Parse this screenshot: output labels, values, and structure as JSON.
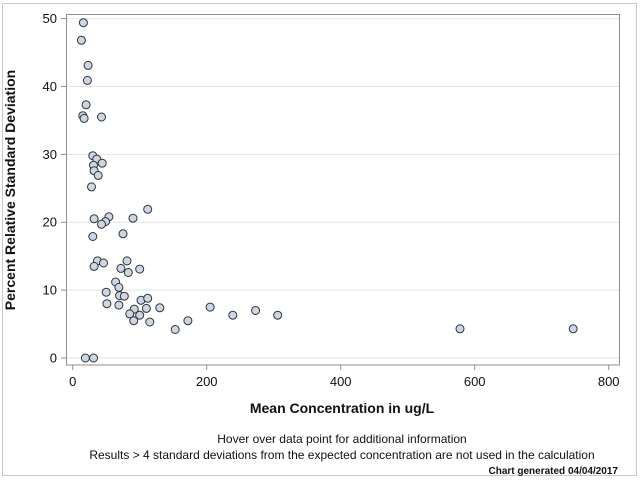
{
  "figure": {
    "background": "#ffffff",
    "border_color": "#c9c9c9"
  },
  "chart_data": {
    "type": "scatter",
    "title": "",
    "xlabel": "Mean Concentration in ug/L",
    "ylabel": "Percent Relative Standard Deviation",
    "x_ticks": [
      0,
      200,
      400,
      600,
      800
    ],
    "y_ticks": [
      0,
      10,
      20,
      30,
      40,
      50
    ],
    "xlim": [
      -10,
      815
    ],
    "ylim": [
      -1,
      50.7
    ],
    "grid": "horizontal",
    "legend": "none",
    "marker": {
      "shape": "circle",
      "fill": "#ccd7e6",
      "stroke": "#333333",
      "radius": 4,
      "stroke_width": 1
    },
    "points": [
      [
        16,
        49.4
      ],
      [
        13,
        46.8
      ],
      [
        23,
        43.1
      ],
      [
        22,
        40.9
      ],
      [
        20,
        37.3
      ],
      [
        15,
        35.7
      ],
      [
        17,
        35.3
      ],
      [
        43,
        35.5
      ],
      [
        30,
        29.8
      ],
      [
        36,
        29.3
      ],
      [
        44,
        28.7
      ],
      [
        31,
        28.4
      ],
      [
        32,
        27.6
      ],
      [
        38,
        26.9
      ],
      [
        28,
        25.2
      ],
      [
        112,
        21.9
      ],
      [
        90,
        20.6
      ],
      [
        54,
        20.8
      ],
      [
        49,
        20.1
      ],
      [
        43,
        19.7
      ],
      [
        32,
        20.5
      ],
      [
        75,
        18.3
      ],
      [
        30,
        17.9
      ],
      [
        37,
        14.3
      ],
      [
        32,
        13.5
      ],
      [
        46,
        14.0
      ],
      [
        81,
        14.3
      ],
      [
        72,
        13.2
      ],
      [
        83,
        12.6
      ],
      [
        100,
        13.1
      ],
      [
        64,
        11.2
      ],
      [
        69,
        10.4
      ],
      [
        50,
        9.7
      ],
      [
        70,
        9.2
      ],
      [
        77,
        9.1
      ],
      [
        51,
        8.0
      ],
      [
        69,
        7.8
      ],
      [
        102,
        8.5
      ],
      [
        112,
        8.8
      ],
      [
        92,
        7.2
      ],
      [
        110,
        7.3
      ],
      [
        130,
        7.4
      ],
      [
        85,
        6.5
      ],
      [
        100,
        6.3
      ],
      [
        91,
        5.5
      ],
      [
        115,
        5.3
      ],
      [
        153,
        4.2
      ],
      [
        172,
        5.5
      ],
      [
        205,
        7.5
      ],
      [
        239,
        6.3
      ],
      [
        273,
        7.0
      ],
      [
        306,
        6.3
      ],
      [
        578,
        4.3
      ],
      [
        747,
        4.3
      ],
      [
        19,
        0
      ],
      [
        31,
        0
      ]
    ]
  },
  "footnotes": {
    "hover": "Hover over data point for additional information",
    "exclusion": "Results > 4 standard deviations from the expected concentration are not used in the calculation",
    "generated": "Chart generated 04/04/2017"
  }
}
